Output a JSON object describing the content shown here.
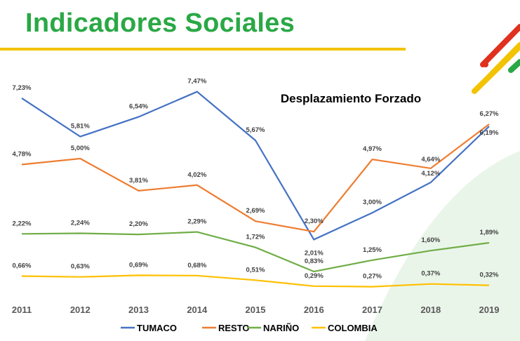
{
  "header": {
    "title": "Indicadores Sociales"
  },
  "colors": {
    "title_green": "#2aa845",
    "accent_yellow": "#f2c300",
    "tumaco": "#4472c4",
    "resto": "#ed7d31",
    "narino": "#70ad47",
    "colombia": "#ffc000"
  },
  "chart_data": {
    "type": "line",
    "title": "Desplazamiento Forzado",
    "xlabel": "",
    "ylabel": "",
    "categories": [
      "2011",
      "2012",
      "2013",
      "2014",
      "2015",
      "2016",
      "2017",
      "2018",
      "2019"
    ],
    "ylim": [
      0,
      8
    ],
    "grid": false,
    "legend": "bottom",
    "series": [
      {
        "name": "TUMACO",
        "values": [
          7.23,
          5.81,
          6.54,
          7.47,
          5.67,
          2.01,
          3.0,
          4.12,
          6.19
        ],
        "labels": [
          "7,23%",
          "5,81%",
          "6,54%",
          "7,47%",
          "5,67%",
          "2,01%",
          "3,00%",
          "4,12%",
          "6,19%"
        ]
      },
      {
        "name": "RESTO",
        "values": [
          4.78,
          5.0,
          3.81,
          4.02,
          2.69,
          2.3,
          4.97,
          4.64,
          6.27
        ],
        "labels": [
          "4,78%",
          "5,00%",
          "3,81%",
          "4,02%",
          "2,69%",
          "2,30%",
          "4,97%",
          "4,64%",
          "6,27%"
        ]
      },
      {
        "name": "NARIÑO",
        "values": [
          2.22,
          2.24,
          2.2,
          2.29,
          1.72,
          0.83,
          1.25,
          1.6,
          1.89
        ],
        "labels": [
          "2,22%",
          "2,24%",
          "2,20%",
          "2,29%",
          "1,72%",
          "0,83%",
          "1,25%",
          "1,60%",
          "1,89%"
        ]
      },
      {
        "name": "COLOMBIA",
        "values": [
          0.66,
          0.63,
          0.69,
          0.68,
          0.51,
          0.29,
          0.27,
          0.37,
          0.32
        ],
        "labels": [
          "0,66%",
          "0,63%",
          "0,69%",
          "0,68%",
          "0,51%",
          "0,29%",
          "0,27%",
          "0,37%",
          "0,32%"
        ]
      }
    ]
  }
}
